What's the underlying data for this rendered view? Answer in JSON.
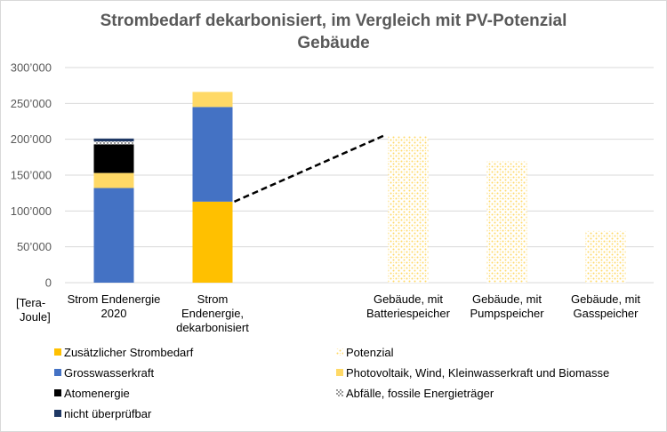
{
  "chart_data": {
    "type": "bar",
    "title_lines": [
      "Strombedarf dekarbonisiert, im Vergleich mit PV-Potenzial",
      "Gebäude"
    ],
    "ylabel_lines": [
      "[Tera-",
      "Joule]"
    ],
    "ylim": [
      0,
      300000
    ],
    "yticks": [
      "0",
      "50’000",
      "100’000",
      "150’000",
      "200’000",
      "250’000",
      "300’000"
    ],
    "grid": true,
    "legend_position": "bottom",
    "colors": {
      "zusatz": "#FFC000",
      "gross": "#4472C4",
      "pv": "#FFD966",
      "atom": "#000000",
      "fossil": "#ffffff",
      "nicht": "#1F3864",
      "potenzial": "#FFD966"
    },
    "categories": [
      [
        "Strom Endenergie",
        "2020"
      ],
      [
        "Strom",
        "Endenergie,",
        "dekarbonisiert"
      ],
      [
        "Gebäude, mit",
        "Batteriespeicher"
      ],
      [
        "Gebäude, mit",
        "Pumpspeicher"
      ],
      [
        "Gebäude, mit",
        "Gasspeicher"
      ]
    ],
    "series": [
      {
        "name": "Zusätzlicher Strombedarf",
        "key": "zusatz",
        "values": [
          0,
          113000,
          0,
          0,
          0
        ]
      },
      {
        "name": "Grosswasserkraft",
        "key": "gross",
        "values": [
          132000,
          132000,
          0,
          0,
          0
        ]
      },
      {
        "name": "Photovoltaik, Wind, Kleinwasserkraft und Biomasse",
        "key": "pv",
        "values": [
          21000,
          21000,
          0,
          0,
          0
        ]
      },
      {
        "name": "Atomenergie",
        "key": "atom",
        "values": [
          40000,
          0,
          0,
          0,
          0
        ]
      },
      {
        "name": "Abfälle, fossile Energieträger",
        "key": "fossil",
        "values": [
          4000,
          0,
          0,
          0,
          0
        ]
      },
      {
        "name": "nicht überprüfbar",
        "key": "nicht",
        "values": [
          4000,
          0,
          0,
          0,
          0
        ]
      },
      {
        "name": "Potenzial",
        "key": "potenzial",
        "values": [
          0,
          0,
          205000,
          169000,
          72000
        ]
      }
    ],
    "connector": {
      "from_category": 1,
      "from_value": 113000,
      "to_category": 2,
      "to_value": 205000
    },
    "legend": {
      "left": [
        "Zusätzlicher Strombedarf",
        "Grosswasserkraft",
        "Atomenergie",
        "nicht überprüfbar"
      ],
      "right": [
        "Potenzial",
        "Photovoltaik, Wind, Kleinwasserkraft und Biomasse",
        "Abfälle, fossile Energieträger"
      ]
    }
  }
}
